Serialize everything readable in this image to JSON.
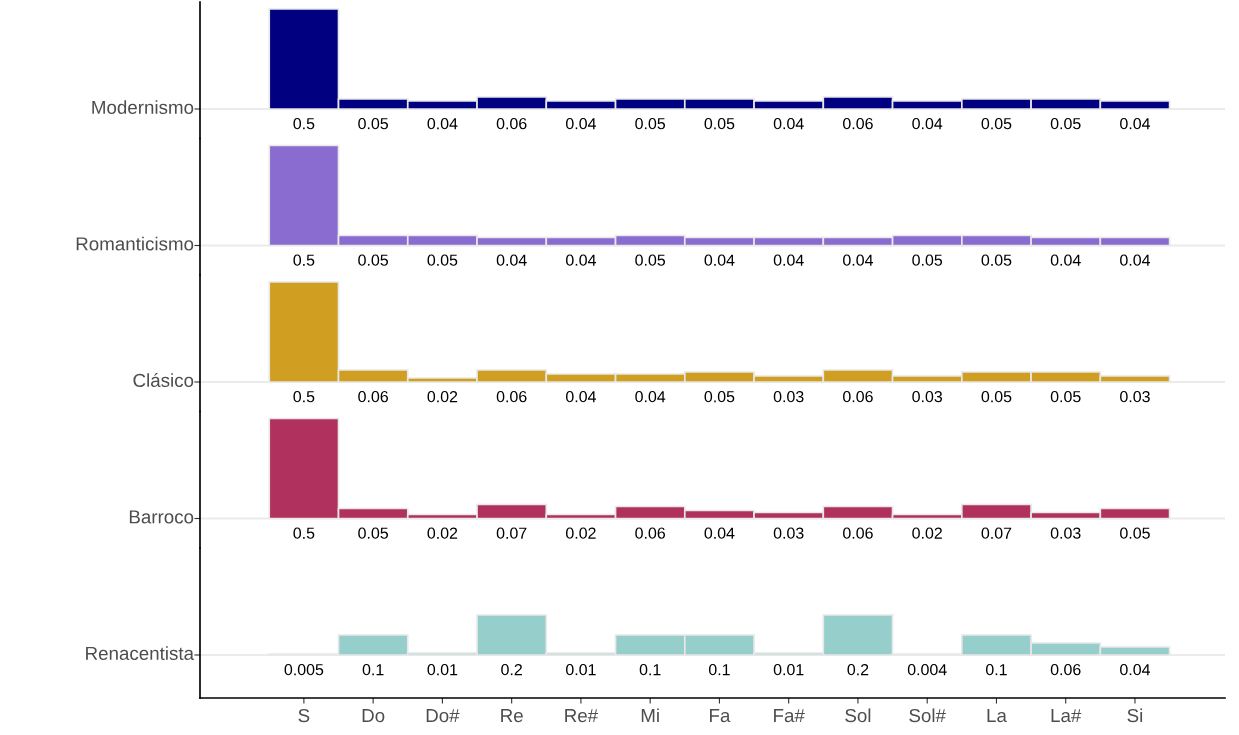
{
  "chart_data": [
    {
      "type": "bar",
      "ylabel": "Modernismo",
      "data_labels": true,
      "tick_labels": false,
      "color": "#000080",
      "categories": [
        null,
        null,
        null,
        null,
        null,
        null,
        null,
        null,
        null,
        null,
        null,
        null,
        null
      ],
      "values": [
        0.5,
        0.05,
        0.04,
        0.06,
        0.04,
        0.05,
        0.05,
        0.04,
        0.06,
        0.04,
        0.05,
        0.05,
        0.04
      ]
    },
    {
      "type": "bar",
      "ylabel": "Romanticismo",
      "data_labels": true,
      "tick_labels": false,
      "color": "#8a6bcf",
      "categories": [
        null,
        null,
        null,
        null,
        null,
        null,
        null,
        null,
        null,
        null,
        null,
        null,
        null
      ],
      "values": [
        0.5,
        0.05,
        0.05,
        0.04,
        0.04,
        0.05,
        0.04,
        0.04,
        0.04,
        0.05,
        0.05,
        0.04,
        0.04
      ]
    },
    {
      "type": "bar",
      "ylabel": "Clásico",
      "data_labels": true,
      "tick_labels": false,
      "color": "#d09e20",
      "categories": [
        null,
        null,
        null,
        null,
        null,
        null,
        null,
        null,
        null,
        null,
        null,
        null,
        null
      ],
      "values": [
        0.5,
        0.06,
        0.02,
        0.06,
        0.04,
        0.04,
        0.05,
        0.03,
        0.06,
        0.03,
        0.05,
        0.05,
        0.03
      ]
    },
    {
      "type": "bar",
      "ylabel": "Barroco",
      "data_labels": true,
      "tick_labels": false,
      "color": "#b0305e",
      "categories": [
        null,
        null,
        null,
        null,
        null,
        null,
        null,
        null,
        null,
        null,
        null,
        null,
        null
      ],
      "values": [
        0.5,
        0.05,
        0.02,
        0.07,
        0.02,
        0.06,
        0.04,
        0.03,
        0.06,
        0.02,
        0.07,
        0.03,
        0.05
      ]
    },
    {
      "type": "bar",
      "ylabel": "Renacentista",
      "data_labels": true,
      "tick_labels": "x",
      "color": "#96cecc",
      "categories": [
        "S",
        "Do",
        "Do#",
        "Re",
        "Re#",
        "Mi",
        "Fa",
        "Fa#",
        "Sol",
        "Sol#",
        "La",
        "La#",
        "Si"
      ],
      "values": [
        0.005,
        0.1,
        0.01,
        0.2,
        0.01,
        0.1,
        0.1,
        0.01,
        0.2,
        0.004,
        0.1,
        0.06,
        0.04
      ]
    }
  ]
}
